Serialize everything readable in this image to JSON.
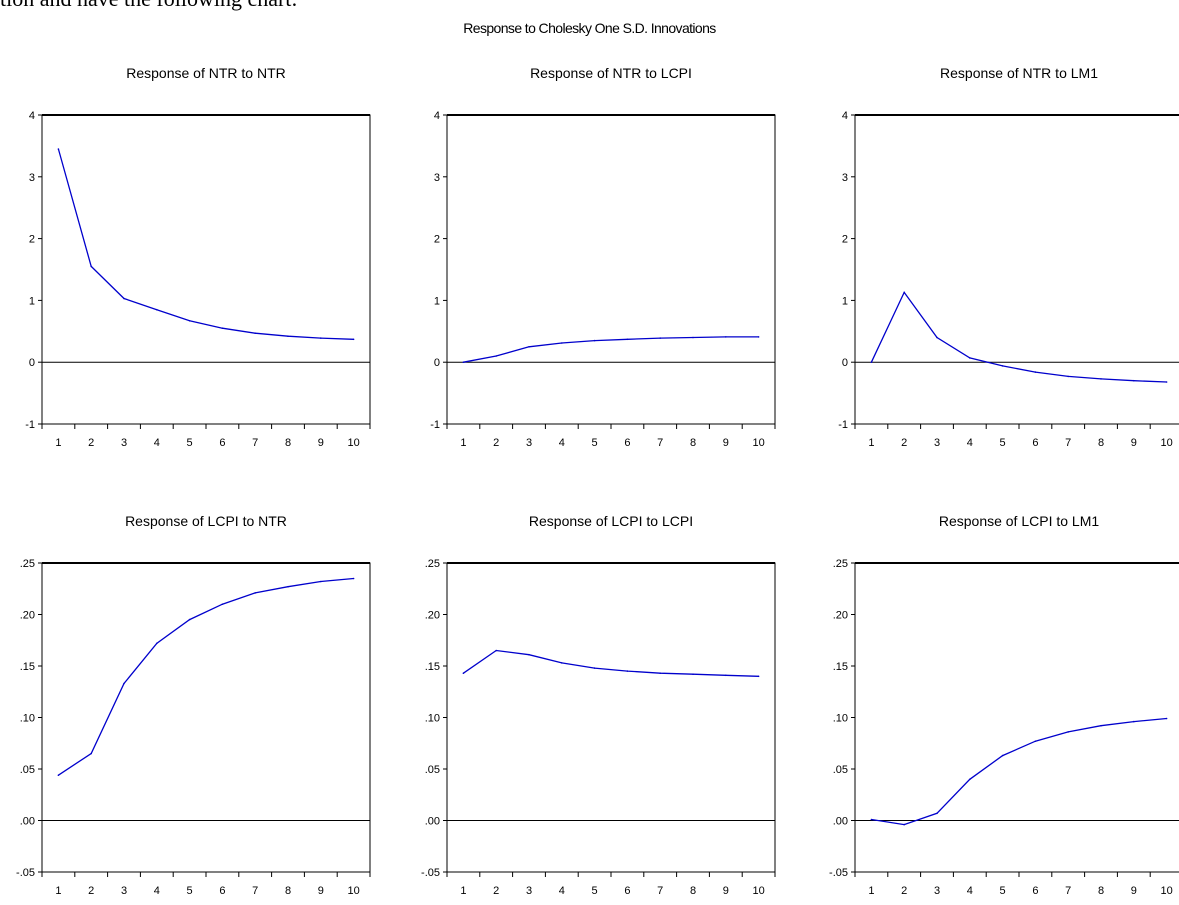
{
  "top_text": "tion and have the following chart:",
  "figure_title": "Response to Cholesky One S.D. Innovations",
  "colors": {
    "line": "#0000cc",
    "axis": "#000000",
    "zero_line": "#000000"
  },
  "chart_data": [
    {
      "type": "line",
      "title": "Response of NTR to NTR",
      "x": [
        1,
        2,
        3,
        4,
        5,
        6,
        7,
        8,
        9,
        10
      ],
      "series": [
        {
          "values": [
            3.45,
            1.55,
            1.03,
            0.85,
            0.67,
            0.55,
            0.47,
            0.42,
            0.39,
            0.37
          ]
        }
      ],
      "ylim": [
        -1,
        4
      ],
      "yticks": [
        -1,
        0,
        1,
        2,
        3,
        4
      ],
      "ytick_labels": [
        "-1",
        "0",
        "1",
        "2",
        "3",
        "4"
      ],
      "xtick_labels": [
        "1",
        "2",
        "3",
        "4",
        "5",
        "6",
        "7",
        "8",
        "9",
        "10"
      ],
      "grid": false
    },
    {
      "type": "line",
      "title": "Response of NTR to LCPI",
      "x": [
        1,
        2,
        3,
        4,
        5,
        6,
        7,
        8,
        9,
        10
      ],
      "series": [
        {
          "values": [
            0.0,
            0.1,
            0.25,
            0.31,
            0.35,
            0.37,
            0.39,
            0.4,
            0.41,
            0.41
          ]
        }
      ],
      "ylim": [
        -1,
        4
      ],
      "yticks": [
        -1,
        0,
        1,
        2,
        3,
        4
      ],
      "ytick_labels": [
        "-1",
        "0",
        "1",
        "2",
        "3",
        "4"
      ],
      "xtick_labels": [
        "1",
        "2",
        "3",
        "4",
        "5",
        "6",
        "7",
        "8",
        "9",
        "10"
      ],
      "grid": false
    },
    {
      "type": "line",
      "title": "Response of NTR to LM1",
      "x": [
        1,
        2,
        3,
        4,
        5,
        6,
        7,
        8,
        9,
        10
      ],
      "series": [
        {
          "values": [
            0.0,
            1.13,
            0.4,
            0.07,
            -0.06,
            -0.16,
            -0.23,
            -0.27,
            -0.3,
            -0.32
          ]
        }
      ],
      "ylim": [
        -1,
        4
      ],
      "yticks": [
        -1,
        0,
        1,
        2,
        3,
        4
      ],
      "ytick_labels": [
        "-1",
        "0",
        "1",
        "2",
        "3",
        "4"
      ],
      "xtick_labels": [
        "1",
        "2",
        "3",
        "4",
        "5",
        "6",
        "7",
        "8",
        "9",
        "10"
      ],
      "grid": false
    },
    {
      "type": "line",
      "title": "Response of LCPI to NTR",
      "x": [
        1,
        2,
        3,
        4,
        5,
        6,
        7,
        8,
        9,
        10
      ],
      "series": [
        {
          "values": [
            0.044,
            0.065,
            0.133,
            0.172,
            0.195,
            0.21,
            0.221,
            0.227,
            0.232,
            0.235
          ]
        }
      ],
      "ylim": [
        -0.05,
        0.25
      ],
      "yticks": [
        -0.05,
        0,
        0.05,
        0.1,
        0.15,
        0.2,
        0.25
      ],
      "ytick_labels": [
        "-.05",
        ".00",
        ".05",
        ".10",
        ".15",
        ".20",
        ".25"
      ],
      "xtick_labels": [
        "1",
        "2",
        "3",
        "4",
        "5",
        "6",
        "7",
        "8",
        "9",
        "10"
      ],
      "grid": false
    },
    {
      "type": "line",
      "title": "Response of LCPI to LCPI",
      "x": [
        1,
        2,
        3,
        4,
        5,
        6,
        7,
        8,
        9,
        10
      ],
      "series": [
        {
          "values": [
            0.143,
            0.165,
            0.161,
            0.153,
            0.148,
            0.145,
            0.143,
            0.142,
            0.141,
            0.14
          ]
        }
      ],
      "ylim": [
        -0.05,
        0.25
      ],
      "yticks": [
        -0.05,
        0,
        0.05,
        0.1,
        0.15,
        0.2,
        0.25
      ],
      "ytick_labels": [
        "-.05",
        ".00",
        ".05",
        ".10",
        ".15",
        ".20",
        ".25"
      ],
      "xtick_labels": [
        "1",
        "2",
        "3",
        "4",
        "5",
        "6",
        "7",
        "8",
        "9",
        "10"
      ],
      "grid": false
    },
    {
      "type": "line",
      "title": "Response of LCPI to LM1",
      "x": [
        1,
        2,
        3,
        4,
        5,
        6,
        7,
        8,
        9,
        10
      ],
      "series": [
        {
          "values": [
            0.001,
            -0.004,
            0.007,
            0.04,
            0.063,
            0.077,
            0.086,
            0.092,
            0.096,
            0.099
          ]
        }
      ],
      "ylim": [
        -0.05,
        0.25
      ],
      "yticks": [
        -0.05,
        0,
        0.05,
        0.1,
        0.15,
        0.2,
        0.25
      ],
      "ytick_labels": [
        "-.05",
        ".00",
        ".05",
        ".10",
        ".15",
        ".20",
        ".25"
      ],
      "xtick_labels": [
        "1",
        "2",
        "3",
        "4",
        "5",
        "6",
        "7",
        "8",
        "9",
        "10"
      ],
      "grid": false
    }
  ]
}
